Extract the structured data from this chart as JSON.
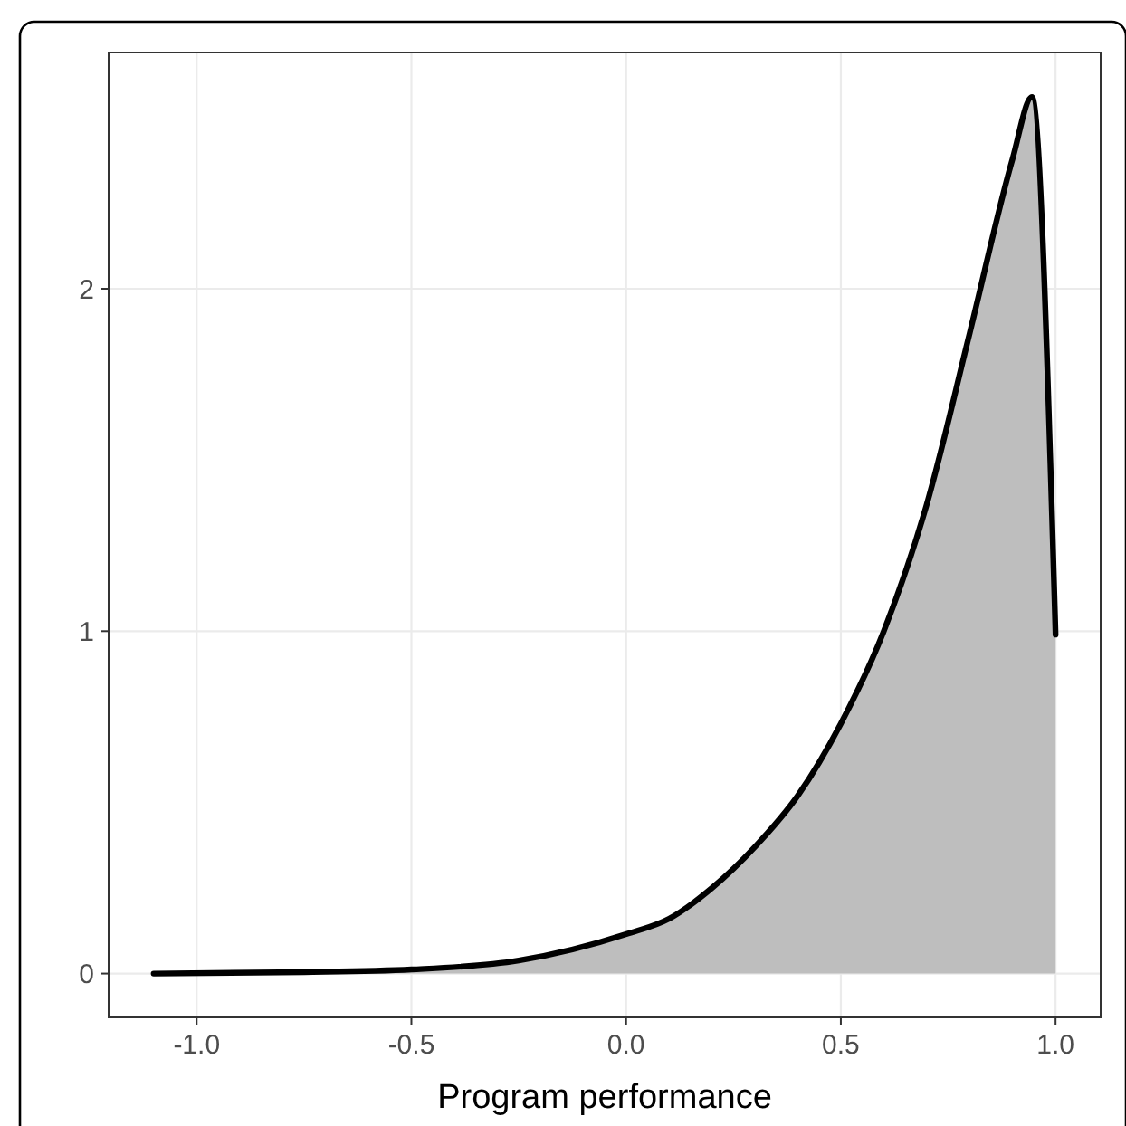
{
  "chart_data": {
    "type": "area",
    "xlabel": "Program performance",
    "x": [
      -1.1,
      -0.75,
      -0.5,
      -0.25,
      0.0,
      0.1,
      0.2,
      0.3,
      0.4,
      0.5,
      0.6,
      0.7,
      0.8,
      0.9,
      0.945,
      1.0
    ],
    "series": [
      {
        "color": "#bebebe",
        "values": [
          0,
          0.004,
          0.012,
          0.038,
          0.115,
          0.16,
          0.25,
          0.37,
          0.52,
          0.73,
          1.0,
          1.37,
          1.87,
          2.38,
          2.56,
          0.99
        ]
      }
    ],
    "xlim": [
      -1.205,
      1.105
    ],
    "ylim": [
      -0.128,
      2.69
    ],
    "xticks": [
      {
        "value": -1,
        "label": "-1.0"
      },
      {
        "value": -0.5,
        "label": "-0.5"
      },
      {
        "value": 0,
        "label": "0.0"
      },
      {
        "value": 0.5,
        "label": "0.5"
      },
      {
        "value": 1,
        "label": "1.0"
      }
    ],
    "yticks": [
      0,
      1,
      2
    ],
    "grid": true,
    "line_style": "solid"
  }
}
